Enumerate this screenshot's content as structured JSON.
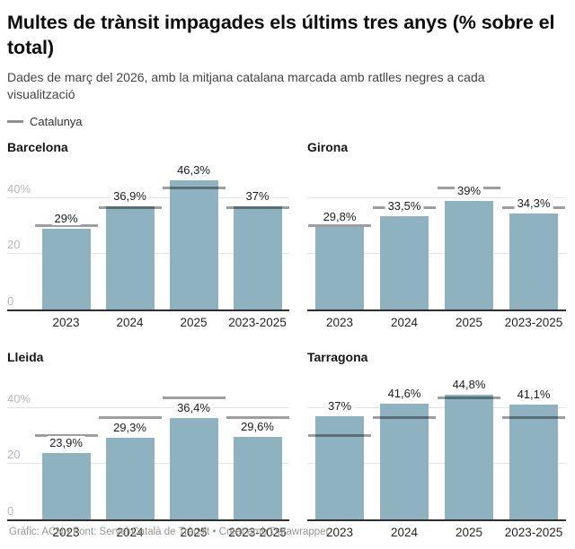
{
  "header": {
    "title": "Multes de trànsit impagades els últims tres anys (% sobre el total)",
    "subtitle": "Dades de març del 2026, amb la mitjana catalana marcada amb ratlles negres a cada visualització",
    "legend_label": "Catalunya"
  },
  "footer": {
    "text": "Gràfic: ACN • Font: Servei Català de Trànsit • Creat amb Datawrapper"
  },
  "colors": {
    "bar": "#8fb2c1",
    "reference_marker": "rgba(0,0,0,0.38)",
    "baseline": "#2e2e2e",
    "gridline": "#e4e4e4",
    "tick_label": "#b8b8b8",
    "legend_swatch": "#8f8f8f"
  },
  "chart_data": {
    "type": "bar",
    "layout": "small-multiples 2x2",
    "categories": [
      "2023",
      "2024",
      "2025",
      "2023-2025"
    ],
    "ylim": [
      0,
      53
    ],
    "grid": "on",
    "y_ticks": [
      {
        "value": 0,
        "label": "0"
      },
      {
        "value": 20,
        "label": "20"
      },
      {
        "value": 40,
        "label": "40%"
      }
    ],
    "panels": [
      {
        "title": "Barcelona",
        "values": [
          29,
          36.9,
          46.3,
          37
        ],
        "labels": [
          "29%",
          "36,9%",
          "46,3%",
          "37%"
        ],
        "show_y_labels": true
      },
      {
        "title": "Girona",
        "values": [
          29.8,
          33.5,
          39,
          34.3
        ],
        "labels": [
          "29,8%",
          "33,5%",
          "39%",
          "34,3%"
        ],
        "show_y_labels": false
      },
      {
        "title": "Lleida",
        "values": [
          23.9,
          29.3,
          36.4,
          29.6
        ],
        "labels": [
          "23,9%",
          "29,3%",
          "36,4%",
          "29,6%"
        ],
        "show_y_labels": true
      },
      {
        "title": "Tarragona",
        "values": [
          37,
          41.6,
          44.8,
          41.1
        ],
        "labels": [
          "37%",
          "41,6%",
          "44,8%",
          "41,1%"
        ],
        "show_y_labels": false
      }
    ],
    "reference_series": {
      "name": "Catalunya",
      "note": "estimated from unlabeled black dash markers",
      "values": [
        29.9,
        36.5,
        43.5,
        36.5
      ]
    }
  }
}
